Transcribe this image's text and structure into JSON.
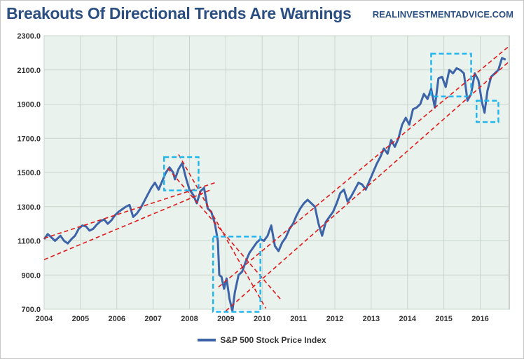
{
  "header": {
    "title": "Breakouts Of Directional Trends Are Warnings",
    "source": "REALINVESTMENTADVICE.COM"
  },
  "colors": {
    "series": "#3d63a8",
    "trend": "#e0191b",
    "box": "#1eb4ee",
    "plot_bg": "#e9f2ec",
    "grid": "#c9d6cd",
    "title": "#2b4f81"
  },
  "chart_data": {
    "type": "line",
    "title": "Breakouts Of Directional Trends Are Warnings",
    "xlabel": "",
    "ylabel": "",
    "xlim": [
      2004,
      2016.8
    ],
    "ylim": [
      700,
      2300
    ],
    "grid": true,
    "legend_position": "bottom",
    "x_ticks": [
      "2004",
      "2005",
      "2006",
      "2007",
      "2008",
      "2009",
      "2010",
      "2011",
      "2012",
      "2013",
      "2014",
      "2015",
      "2016"
    ],
    "y_ticks": [
      "2300.0",
      "2100.0",
      "1900.0",
      "1700.0",
      "1500.0",
      "1300.0",
      "1100.0",
      "900.0",
      "700.0"
    ],
    "series": [
      {
        "name": "S&P 500 Stock Price Index",
        "points": [
          [
            2004.0,
            1110
          ],
          [
            2004.1,
            1140
          ],
          [
            2004.2,
            1120
          ],
          [
            2004.3,
            1100
          ],
          [
            2004.45,
            1130
          ],
          [
            2004.55,
            1100
          ],
          [
            2004.65,
            1085
          ],
          [
            2004.75,
            1110
          ],
          [
            2004.85,
            1130
          ],
          [
            2004.95,
            1170
          ],
          [
            2005.05,
            1190
          ],
          [
            2005.15,
            1185
          ],
          [
            2005.25,
            1160
          ],
          [
            2005.35,
            1170
          ],
          [
            2005.45,
            1195
          ],
          [
            2005.55,
            1215
          ],
          [
            2005.65,
            1225
          ],
          [
            2005.75,
            1200
          ],
          [
            2005.85,
            1220
          ],
          [
            2005.95,
            1250
          ],
          [
            2006.05,
            1270
          ],
          [
            2006.15,
            1285
          ],
          [
            2006.25,
            1300
          ],
          [
            2006.35,
            1310
          ],
          [
            2006.45,
            1240
          ],
          [
            2006.55,
            1260
          ],
          [
            2006.65,
            1290
          ],
          [
            2006.75,
            1330
          ],
          [
            2006.85,
            1370
          ],
          [
            2006.95,
            1410
          ],
          [
            2007.05,
            1440
          ],
          [
            2007.15,
            1400
          ],
          [
            2007.25,
            1450
          ],
          [
            2007.35,
            1500
          ],
          [
            2007.45,
            1530
          ],
          [
            2007.55,
            1500
          ],
          [
            2007.6,
            1460
          ],
          [
            2007.7,
            1520
          ],
          [
            2007.8,
            1555
          ],
          [
            2007.9,
            1470
          ],
          [
            2008.0,
            1400
          ],
          [
            2008.1,
            1370
          ],
          [
            2008.2,
            1320
          ],
          [
            2008.3,
            1390
          ],
          [
            2008.4,
            1410
          ],
          [
            2008.5,
            1290
          ],
          [
            2008.6,
            1270
          ],
          [
            2008.7,
            1200
          ],
          [
            2008.78,
            1100
          ],
          [
            2008.82,
            900
          ],
          [
            2008.88,
            890
          ],
          [
            2008.95,
            820
          ],
          [
            2009.02,
            880
          ],
          [
            2009.1,
            760
          ],
          [
            2009.18,
            690
          ],
          [
            2009.25,
            800
          ],
          [
            2009.35,
            900
          ],
          [
            2009.45,
            920
          ],
          [
            2009.55,
            980
          ],
          [
            2009.65,
            1030
          ],
          [
            2009.75,
            1060
          ],
          [
            2009.85,
            1090
          ],
          [
            2009.95,
            1110
          ],
          [
            2010.05,
            1100
          ],
          [
            2010.15,
            1130
          ],
          [
            2010.25,
            1190
          ],
          [
            2010.35,
            1070
          ],
          [
            2010.45,
            1040
          ],
          [
            2010.55,
            1090
          ],
          [
            2010.65,
            1120
          ],
          [
            2010.75,
            1170
          ],
          [
            2010.85,
            1200
          ],
          [
            2010.95,
            1250
          ],
          [
            2011.05,
            1290
          ],
          [
            2011.15,
            1320
          ],
          [
            2011.25,
            1340
          ],
          [
            2011.35,
            1320
          ],
          [
            2011.45,
            1300
          ],
          [
            2011.55,
            1200
          ],
          [
            2011.65,
            1130
          ],
          [
            2011.75,
            1210
          ],
          [
            2011.85,
            1240
          ],
          [
            2011.95,
            1270
          ],
          [
            2012.05,
            1320
          ],
          [
            2012.15,
            1380
          ],
          [
            2012.25,
            1400
          ],
          [
            2012.35,
            1330
          ],
          [
            2012.45,
            1360
          ],
          [
            2012.55,
            1400
          ],
          [
            2012.65,
            1440
          ],
          [
            2012.75,
            1430
          ],
          [
            2012.85,
            1400
          ],
          [
            2012.95,
            1450
          ],
          [
            2013.05,
            1500
          ],
          [
            2013.15,
            1550
          ],
          [
            2013.25,
            1590
          ],
          [
            2013.35,
            1640
          ],
          [
            2013.45,
            1610
          ],
          [
            2013.55,
            1690
          ],
          [
            2013.65,
            1650
          ],
          [
            2013.75,
            1700
          ],
          [
            2013.85,
            1780
          ],
          [
            2013.95,
            1820
          ],
          [
            2014.05,
            1780
          ],
          [
            2014.15,
            1870
          ],
          [
            2014.25,
            1880
          ],
          [
            2014.35,
            1900
          ],
          [
            2014.45,
            1960
          ],
          [
            2014.55,
            1930
          ],
          [
            2014.65,
            1990
          ],
          [
            2014.75,
            1880
          ],
          [
            2014.85,
            2050
          ],
          [
            2014.95,
            2060
          ],
          [
            2015.05,
            2000
          ],
          [
            2015.15,
            2100
          ],
          [
            2015.25,
            2080
          ],
          [
            2015.35,
            2110
          ],
          [
            2015.45,
            2100
          ],
          [
            2015.55,
            2080
          ],
          [
            2015.65,
            1920
          ],
          [
            2015.75,
            1960
          ],
          [
            2015.85,
            2080
          ],
          [
            2015.95,
            2040
          ],
          [
            2016.05,
            1910
          ],
          [
            2016.12,
            1850
          ],
          [
            2016.2,
            1980
          ],
          [
            2016.3,
            2060
          ],
          [
            2016.4,
            2080
          ],
          [
            2016.5,
            2100
          ],
          [
            2016.6,
            2170
          ],
          [
            2016.7,
            2160
          ]
        ]
      }
    ],
    "trend_lines": [
      [
        [
          2004.0,
          1115
        ],
        [
          2008.7,
          1440
        ]
      ],
      [
        [
          2004.0,
          990
        ],
        [
          2008.6,
          1400
        ]
      ],
      [
        [
          2007.7,
          1605
        ],
        [
          2010.1,
          705
        ]
      ],
      [
        [
          2007.4,
          1525
        ],
        [
          2010.5,
          760
        ]
      ],
      [
        [
          2009.0,
          690
        ],
        [
          2016.8,
          2150
        ]
      ],
      [
        [
          2008.8,
          830
        ],
        [
          2016.8,
          2240
        ]
      ]
    ],
    "highlight_boxes": [
      {
        "x": [
          2007.3,
          2008.25
        ],
        "y": [
          1395,
          1590
        ]
      },
      {
        "x": [
          2008.65,
          2009.95
        ],
        "y": [
          685,
          1125
        ]
      },
      {
        "x": [
          2014.65,
          2015.75
        ],
        "y": [
          1945,
          2195
        ]
      },
      {
        "x": [
          2015.9,
          2016.5
        ],
        "y": [
          1795,
          1920
        ]
      }
    ]
  }
}
